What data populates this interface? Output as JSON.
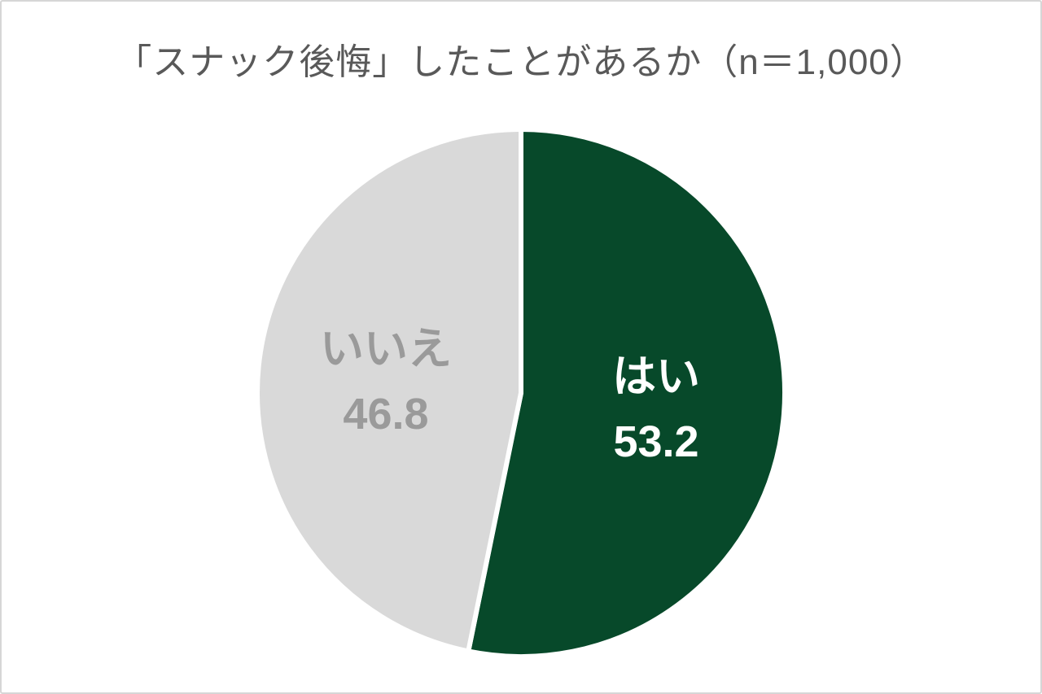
{
  "chart_data": {
    "type": "pie",
    "title": "「スナック後悔」したことがあるか（n＝1,000）",
    "title_color": "#595959",
    "start_angle_deg": 0,
    "direction": "clockwise",
    "slice_border_color": "#ffffff",
    "background_color": "#ffffff",
    "frame_border_color": "#d6d6d6",
    "legend": "none",
    "slices": [
      {
        "label": "はい",
        "value": 53.2,
        "color": "#07492a",
        "text_color": "#ffffff"
      },
      {
        "label": "いいえ",
        "value": 46.8,
        "color": "#d9d9d9",
        "text_color": "#9a9a9a"
      }
    ]
  }
}
